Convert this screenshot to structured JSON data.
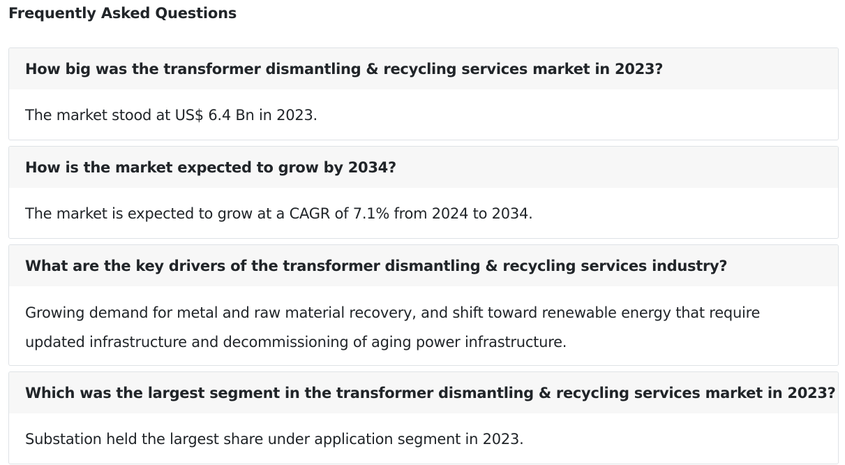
{
  "faq": {
    "title": "Frequently Asked Questions",
    "items": [
      {
        "question": "How big was the transformer dismantling & recycling services market in 2023?",
        "answer": "The market stood at US$ 6.4 Bn in 2023."
      },
      {
        "question": "How is the market expected to grow by 2034?",
        "answer": "The market is expected to grow at a CAGR of 7.1% from 2024 to 2034."
      },
      {
        "question": "What are the key drivers of the transformer dismantling & recycling services industry?",
        "answer": "Growing demand for metal and raw material recovery, and shift toward renewable energy that require updated infrastructure and decommissioning of aging power infrastructure."
      },
      {
        "question": "Which was the largest segment in the transformer dismantling & recycling services market in 2023?",
        "answer": "Substation held the largest share under application segment in 2023."
      }
    ]
  }
}
